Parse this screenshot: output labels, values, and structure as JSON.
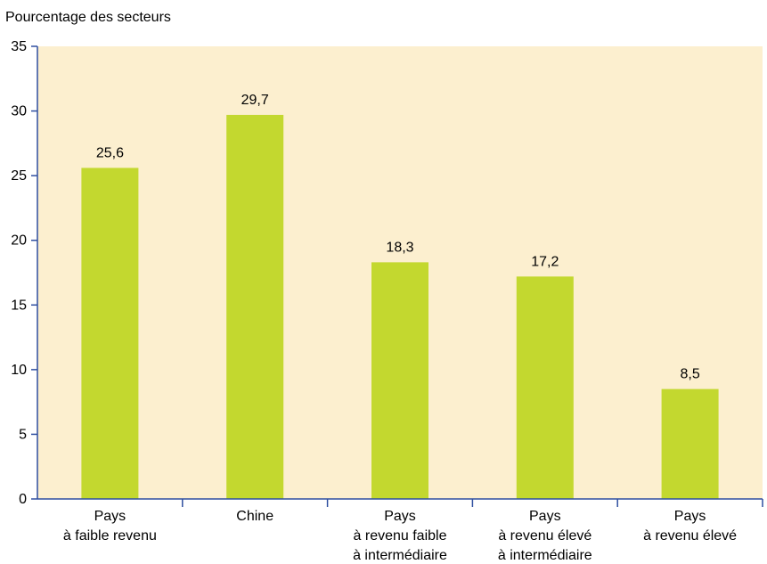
{
  "chart_data": {
    "type": "bar",
    "title": "",
    "xlabel": "",
    "ylabel": "Pourcentage des secteurs",
    "ylim": [
      0,
      35
    ],
    "yticks": [
      "0",
      "5",
      "10",
      "15",
      "20",
      "25",
      "30",
      "35"
    ],
    "categories": [
      [
        "Pays",
        "à faible revenu"
      ],
      [
        "Chine"
      ],
      [
        "Pays",
        "à revenu faible",
        "à intermédiaire"
      ],
      [
        "Pays",
        "à revenu élevé",
        "à intermédiaire"
      ],
      [
        "Pays",
        "à revenu élevé"
      ]
    ],
    "values": [
      25.6,
      29.7,
      18.3,
      17.2,
      8.5
    ],
    "value_labels": [
      "25,6",
      "29,7",
      "18,3",
      "17,2",
      "8,5"
    ],
    "grid": false,
    "legend": "none",
    "colors": {
      "bar": "#c3d82f",
      "plot_background": "#fcefcf",
      "axis": "#2f4fa0",
      "text": "#000000"
    }
  }
}
